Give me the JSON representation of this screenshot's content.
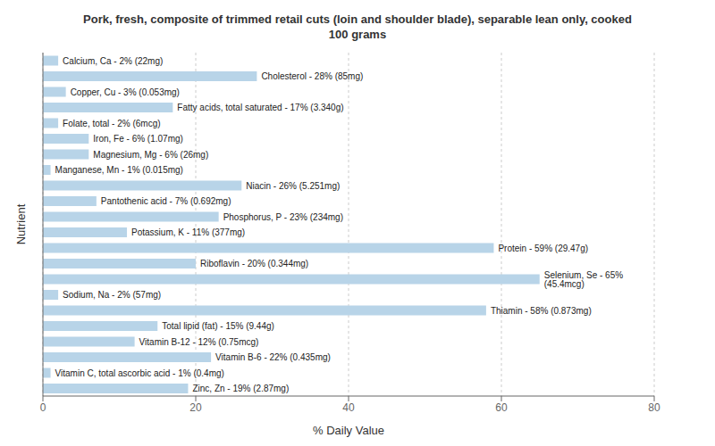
{
  "chart_data": {
    "type": "bar",
    "orientation": "horizontal",
    "title": "Pork, fresh, composite of trimmed retail cuts (loin and shoulder blade), separable lean only, cooked\n100 grams",
    "xlabel": "% Daily Value",
    "ylabel": "Nutrient",
    "categories": [
      "Calcium, Ca - 2% (22mg)",
      "Cholesterol - 28% (85mg)",
      "Copper, Cu - 3% (0.053mg)",
      "Fatty acids, total saturated - 17% (3.340g)",
      "Folate, total - 2% (6mcg)",
      "Iron, Fe - 6% (1.07mg)",
      "Magnesium, Mg - 6% (26mg)",
      "Manganese, Mn - 1% (0.015mg)",
      "Niacin - 26% (5.251mg)",
      "Pantothenic acid - 7% (0.692mg)",
      "Phosphorus, P - 23% (234mg)",
      "Potassium, K - 11% (377mg)",
      "Protein - 59% (29.47g)",
      "Riboflavin - 20% (0.344mg)",
      "Selenium, Se - 65% (45.4mcg)",
      "Sodium, Na - 2% (57mg)",
      "Thiamin - 58% (0.873mg)",
      "Total lipid (fat) - 15% (9.44g)",
      "Vitamin B-12 - 12% (0.75mcg)",
      "Vitamin B-6 - 22% (0.435mg)",
      "Vitamin C, total ascorbic acid - 1% (0.4mg)",
      "Zinc, Zn - 19% (2.87mg)"
    ],
    "values": [
      2,
      28,
      3,
      17,
      2,
      6,
      6,
      1,
      26,
      7,
      23,
      11,
      59,
      20,
      65,
      2,
      58,
      15,
      12,
      22,
      1,
      19
    ],
    "color": "#b8d4e8",
    "xlim": [
      0,
      80
    ],
    "xticks": [
      0,
      20,
      40,
      60,
      80
    ],
    "grid": true,
    "tick_labels": "x"
  }
}
